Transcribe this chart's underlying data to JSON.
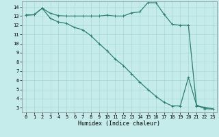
{
  "line1_x": [
    0,
    1,
    2,
    3,
    4,
    5,
    6,
    7,
    8,
    9,
    10,
    11,
    12,
    13,
    14,
    15,
    16,
    17,
    18,
    19,
    20,
    21,
    22,
    23
  ],
  "line1_y": [
    13.1,
    13.15,
    13.85,
    13.3,
    13.05,
    13.0,
    13.0,
    13.0,
    13.0,
    13.0,
    13.1,
    13.0,
    13.0,
    13.35,
    13.45,
    14.45,
    14.45,
    13.2,
    12.1,
    12.0,
    12.0,
    3.2,
    3.05,
    2.9
  ],
  "line2_x": [
    0,
    1,
    2,
    3,
    4,
    5,
    6,
    7,
    8,
    9,
    10,
    11,
    12,
    13,
    14,
    15,
    16,
    17,
    18,
    19,
    20,
    21,
    22,
    23
  ],
  "line2_y": [
    13.1,
    13.15,
    13.85,
    12.75,
    12.35,
    12.2,
    11.75,
    11.5,
    10.85,
    10.0,
    9.2,
    8.3,
    7.6,
    6.7,
    5.8,
    5.0,
    4.25,
    3.6,
    3.2,
    3.2,
    6.3,
    3.3,
    2.9,
    2.85
  ],
  "color": "#2d7d70",
  "bg_color": "#c5ecea",
  "grid_color": "#a8d8d4",
  "xlabel": "Humidex (Indice chaleur)",
  "xlim": [
    -0.5,
    23.5
  ],
  "ylim": [
    2.5,
    14.6
  ],
  "xticks": [
    0,
    1,
    2,
    3,
    4,
    5,
    6,
    7,
    8,
    9,
    10,
    11,
    12,
    13,
    14,
    15,
    16,
    17,
    18,
    19,
    20,
    21,
    22,
    23
  ],
  "yticks": [
    3,
    4,
    5,
    6,
    7,
    8,
    9,
    10,
    11,
    12,
    13,
    14
  ],
  "marker": "+",
  "markersize": 3,
  "linewidth": 0.9
}
